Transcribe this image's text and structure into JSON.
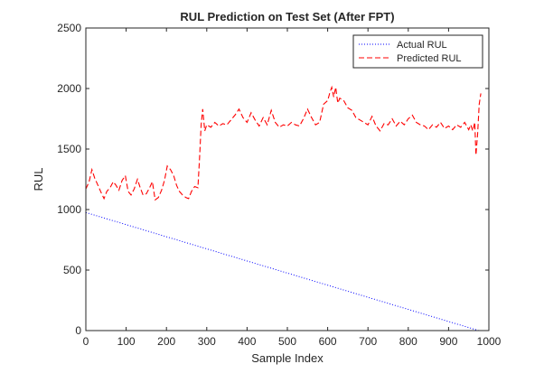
{
  "chart_data": {
    "type": "line",
    "title": "RUL Prediction on Test Set (After FPT)",
    "xlabel": "Sample Index",
    "ylabel": "RUL",
    "xlim": [
      0,
      1000
    ],
    "ylim": [
      0,
      2500
    ],
    "xticks": [
      0,
      100,
      200,
      300,
      400,
      500,
      600,
      700,
      800,
      900,
      1000
    ],
    "yticks": [
      0,
      500,
      1000,
      1500,
      2000,
      2500
    ],
    "grid": false,
    "legend_position": "top-right",
    "series": [
      {
        "name": "Actual RUL",
        "color": "#0000ff",
        "style": "dotted",
        "x": [
          0,
          975
        ],
        "y": [
          975,
          0
        ]
      },
      {
        "name": "Predicted RUL",
        "color": "#ff0000",
        "style": "dashed",
        "x": [
          0,
          8,
          15,
          22,
          30,
          38,
          45,
          52,
          60,
          68,
          75,
          82,
          90,
          98,
          105,
          112,
          120,
          128,
          135,
          142,
          150,
          158,
          165,
          172,
          180,
          188,
          195,
          202,
          210,
          218,
          225,
          232,
          240,
          248,
          255,
          262,
          270,
          278,
          282,
          286,
          290,
          295,
          300,
          310,
          320,
          330,
          340,
          350,
          360,
          370,
          380,
          390,
          400,
          410,
          420,
          430,
          440,
          450,
          460,
          470,
          480,
          490,
          500,
          510,
          520,
          530,
          540,
          550,
          560,
          570,
          580,
          590,
          600,
          605,
          610,
          615,
          620,
          625,
          630,
          640,
          650,
          660,
          670,
          680,
          690,
          700,
          710,
          720,
          730,
          740,
          750,
          760,
          770,
          780,
          790,
          800,
          810,
          820,
          830,
          840,
          850,
          860,
          870,
          880,
          890,
          900,
          910,
          920,
          930,
          940,
          950,
          955,
          960,
          965,
          968,
          972,
          976,
          980
        ],
        "y": [
          1170,
          1230,
          1330,
          1260,
          1200,
          1140,
          1090,
          1150,
          1180,
          1230,
          1200,
          1160,
          1240,
          1280,
          1150,
          1120,
          1170,
          1250,
          1180,
          1120,
          1130,
          1180,
          1230,
          1080,
          1100,
          1160,
          1240,
          1360,
          1330,
          1280,
          1200,
          1150,
          1120,
          1100,
          1090,
          1150,
          1190,
          1180,
          1420,
          1700,
          1830,
          1650,
          1700,
          1680,
          1720,
          1690,
          1710,
          1700,
          1740,
          1780,
          1830,
          1760,
          1720,
          1800,
          1740,
          1690,
          1760,
          1700,
          1820,
          1720,
          1680,
          1700,
          1690,
          1720,
          1700,
          1690,
          1750,
          1830,
          1760,
          1700,
          1720,
          1870,
          1900,
          1960,
          2010,
          1930,
          2010,
          1880,
          1920,
          1900,
          1840,
          1820,
          1760,
          1740,
          1720,
          1700,
          1770,
          1690,
          1650,
          1710,
          1700,
          1750,
          1690,
          1730,
          1700,
          1750,
          1780,
          1720,
          1700,
          1690,
          1660,
          1700,
          1680,
          1720,
          1670,
          1690,
          1660,
          1700,
          1680,
          1720,
          1660,
          1700,
          1650,
          1720,
          1450,
          1620,
          1870,
          1960
        ]
      }
    ]
  }
}
